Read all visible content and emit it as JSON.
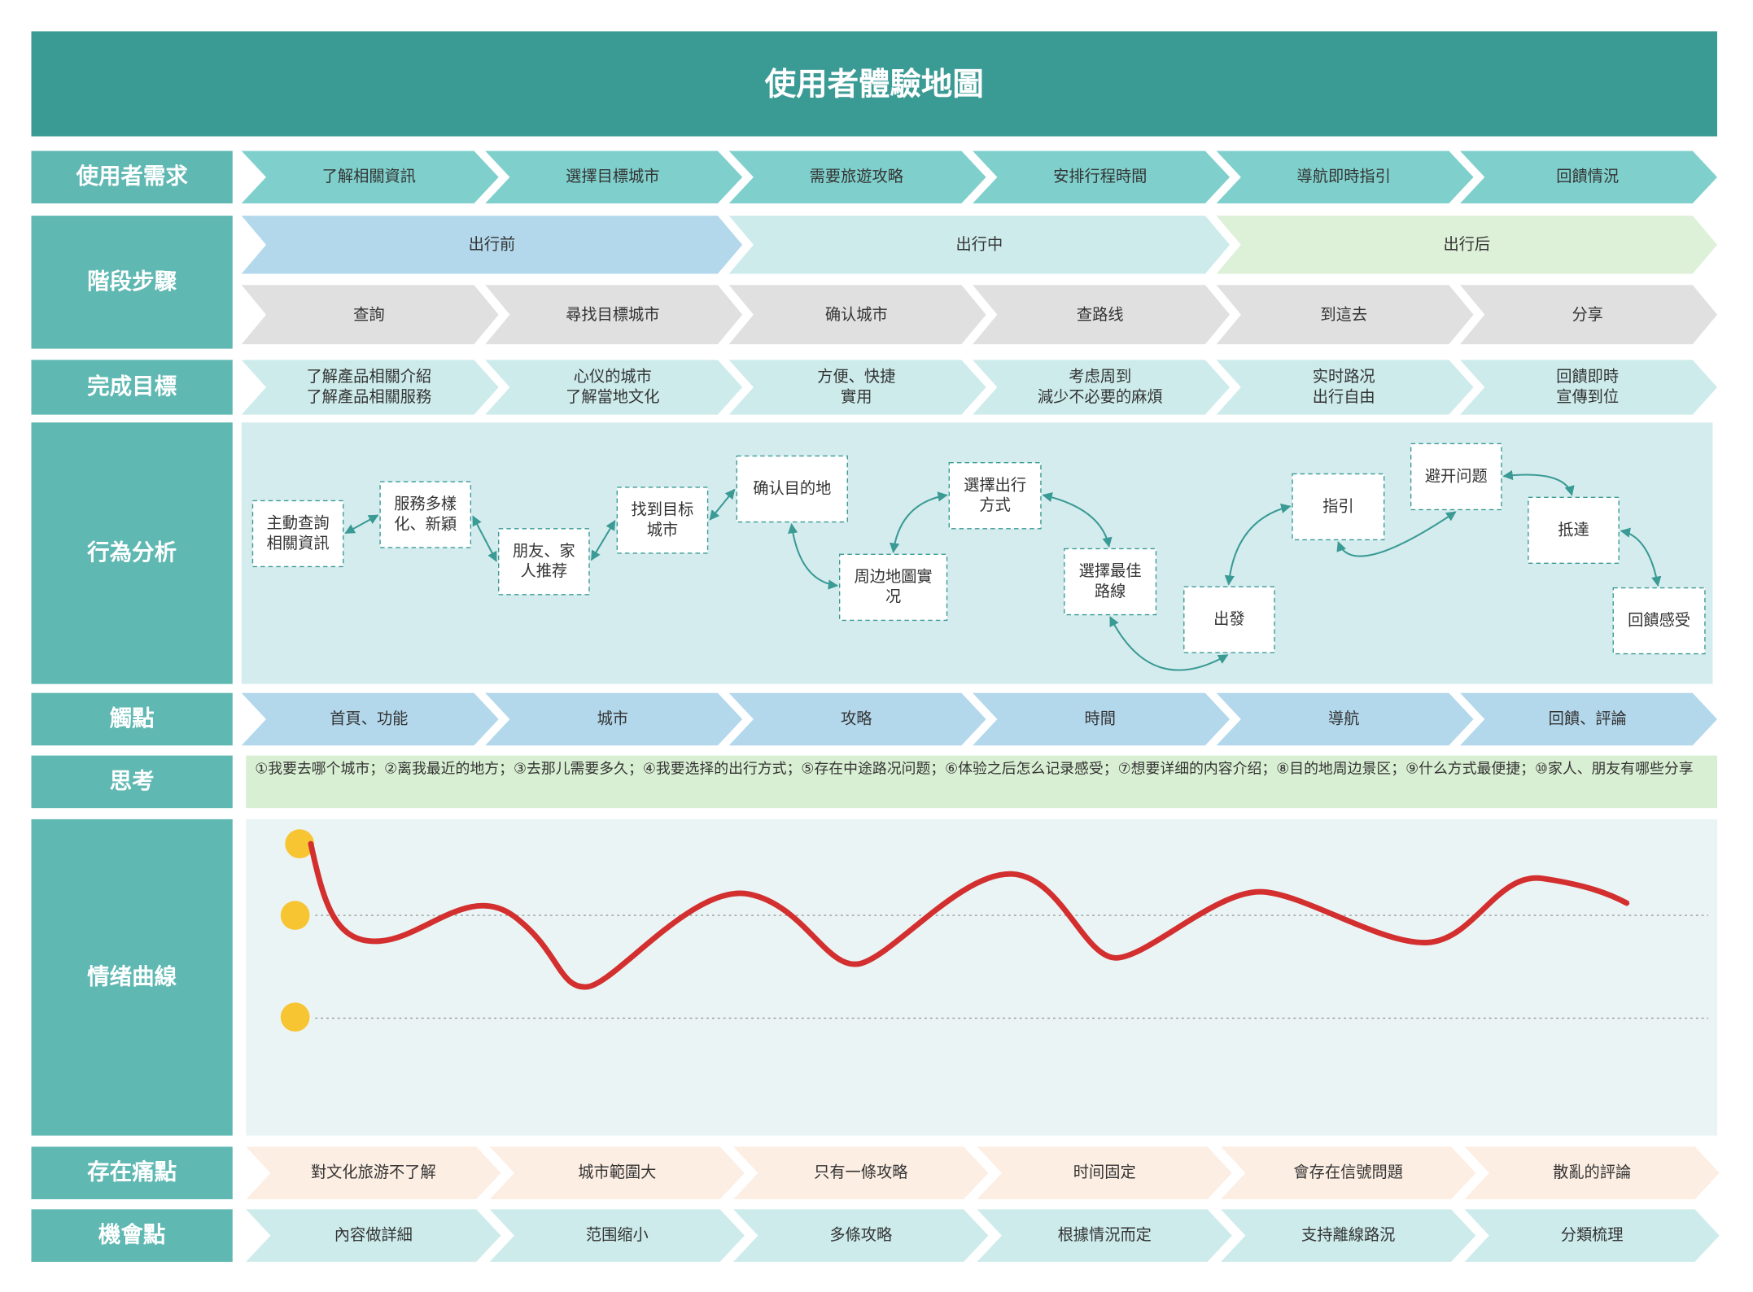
{
  "title": "使用者體驗地圖",
  "rows": {
    "needs": {
      "label": "使用者需求",
      "items": [
        "了解相關資訊",
        "選擇目標城市",
        "需要旅遊攻略",
        "安排行程時間",
        "導航即時指引",
        "回饋情況"
      ]
    },
    "stages": {
      "label": "階段步驟",
      "phases": [
        "出行前",
        "出行中",
        "出行后"
      ],
      "steps": [
        "查詢",
        "尋找目標城市",
        "确认城市",
        "查路线",
        "到這去",
        "分享"
      ]
    },
    "goals": {
      "label": "完成目標",
      "items": [
        [
          "了解產品相關介紹",
          "了解產品相關服務"
        ],
        [
          "心仪的城市",
          "了解當地文化"
        ],
        [
          "方便、快捷",
          "實用"
        ],
        [
          "考虑周到",
          "減少不必要的麻煩"
        ],
        [
          "实时路况",
          "出行自由"
        ],
        [
          "回饋即時",
          "宣傳到位"
        ]
      ]
    },
    "behavior": {
      "label": "行為分析",
      "nodes": [
        [
          "主動查詢",
          "相關資訊"
        ],
        [
          "服務多樣",
          "化、新穎"
        ],
        [
          "朋友、家",
          "人推荐"
        ],
        [
          "找到目标",
          "城市"
        ],
        [
          "确认目的地"
        ],
        [
          "周边地圖實",
          "况"
        ],
        [
          "選擇出行",
          "方式"
        ],
        [
          "選擇最佳",
          "路線"
        ],
        [
          "出發"
        ],
        [
          "指引"
        ],
        [
          "避开问题"
        ],
        [
          "抵達"
        ],
        [
          "回饋感受"
        ]
      ]
    },
    "touchpoints": {
      "label": "觸點",
      "items": [
        "首頁、功能",
        "城市",
        "攻略",
        "時間",
        "導航",
        "回饋、評論"
      ]
    },
    "thinking": {
      "label": "思考",
      "text": "①我要去哪个城市；②离我最近的地方；③去那儿需要多久；④我要选择的出行方式；⑤存在中途路况问题；⑥体验之后怎么记录感受；⑦想要详细的内容介绍；⑧目的地周边景区；⑨什么方式最便捷；⑩家人、朋友有哪些分享"
    },
    "emotion": {
      "label": "情绪曲線"
    },
    "pain": {
      "label": "存在痛點",
      "items": [
        "對文化旅游不了解",
        "城市範圍大",
        "只有一條攻略",
        "时间固定",
        "會存在信號問題",
        "散亂的評論"
      ]
    },
    "opportunity": {
      "label": "機會點",
      "items": [
        "內容做詳細",
        "范围缩小",
        "多條攻略",
        "根據情況而定",
        "支持離線路況",
        "分類梳理"
      ]
    }
  }
}
